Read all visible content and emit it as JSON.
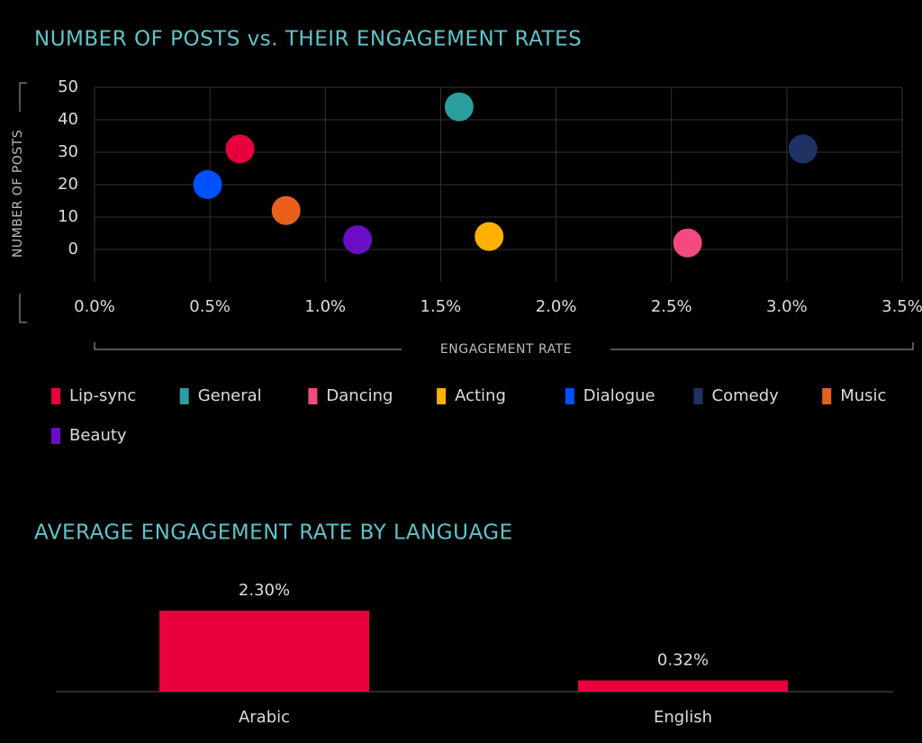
{
  "chart_data": [
    {
      "type": "scatter",
      "title": "NUMBER OF POSTS vs. THEIR ENGAGEMENT RATES",
      "x_label": "ENGAGEMENT RATE",
      "y_label": "NUMBER OF POSTS",
      "xlim": [
        0,
        3.5
      ],
      "ylim": [
        -10,
        50
      ],
      "xticks": [
        {
          "value": 0,
          "label": "0.0%"
        },
        {
          "value": 0.5,
          "label": "0.5%"
        },
        {
          "value": 1,
          "label": "1.0%"
        },
        {
          "value": 1.5,
          "label": "1.5%"
        },
        {
          "value": 2,
          "label": "2.0%"
        },
        {
          "value": 2.5,
          "label": "2.5%"
        },
        {
          "value": 3,
          "label": "3.0%"
        },
        {
          "value": 3.5,
          "label": "3.5%"
        }
      ],
      "yticks": [
        0,
        10,
        20,
        30,
        40,
        50
      ],
      "grid": true,
      "legend": "bottom",
      "series": [
        {
          "name": "Lip-sync",
          "color": "#e8003d",
          "x": [
            0.63
          ],
          "values": [
            31
          ]
        },
        {
          "name": "General",
          "color": "#2a9d9f",
          "x": [
            1.58
          ],
          "values": [
            44
          ]
        },
        {
          "name": "Dancing",
          "color": "#f44b7f",
          "x": [
            2.57
          ],
          "values": [
            2
          ]
        },
        {
          "name": "Acting",
          "color": "#ffb000",
          "x": [
            1.71
          ],
          "values": [
            4
          ]
        },
        {
          "name": "Dialogue",
          "color": "#0050ff",
          "x": [
            0.49
          ],
          "values": [
            20
          ]
        },
        {
          "name": "Comedy",
          "color": "#1e3264",
          "x": [
            3.07
          ],
          "values": [
            31
          ]
        },
        {
          "name": "Music",
          "color": "#e8611c",
          "x": [
            0.83
          ],
          "values": [
            12
          ]
        },
        {
          "name": "Beauty",
          "color": "#6a0dc6",
          "x": [
            1.14
          ],
          "values": [
            3
          ]
        }
      ]
    },
    {
      "type": "bar",
      "title": "AVERAGE ENGAGEMENT RATE BY LANGUAGE",
      "categories": [
        "Arabic",
        "English"
      ],
      "values": [
        2.3,
        0.32
      ],
      "value_labels": [
        "2.30%",
        "0.32%"
      ],
      "color": "#e8003d"
    }
  ]
}
